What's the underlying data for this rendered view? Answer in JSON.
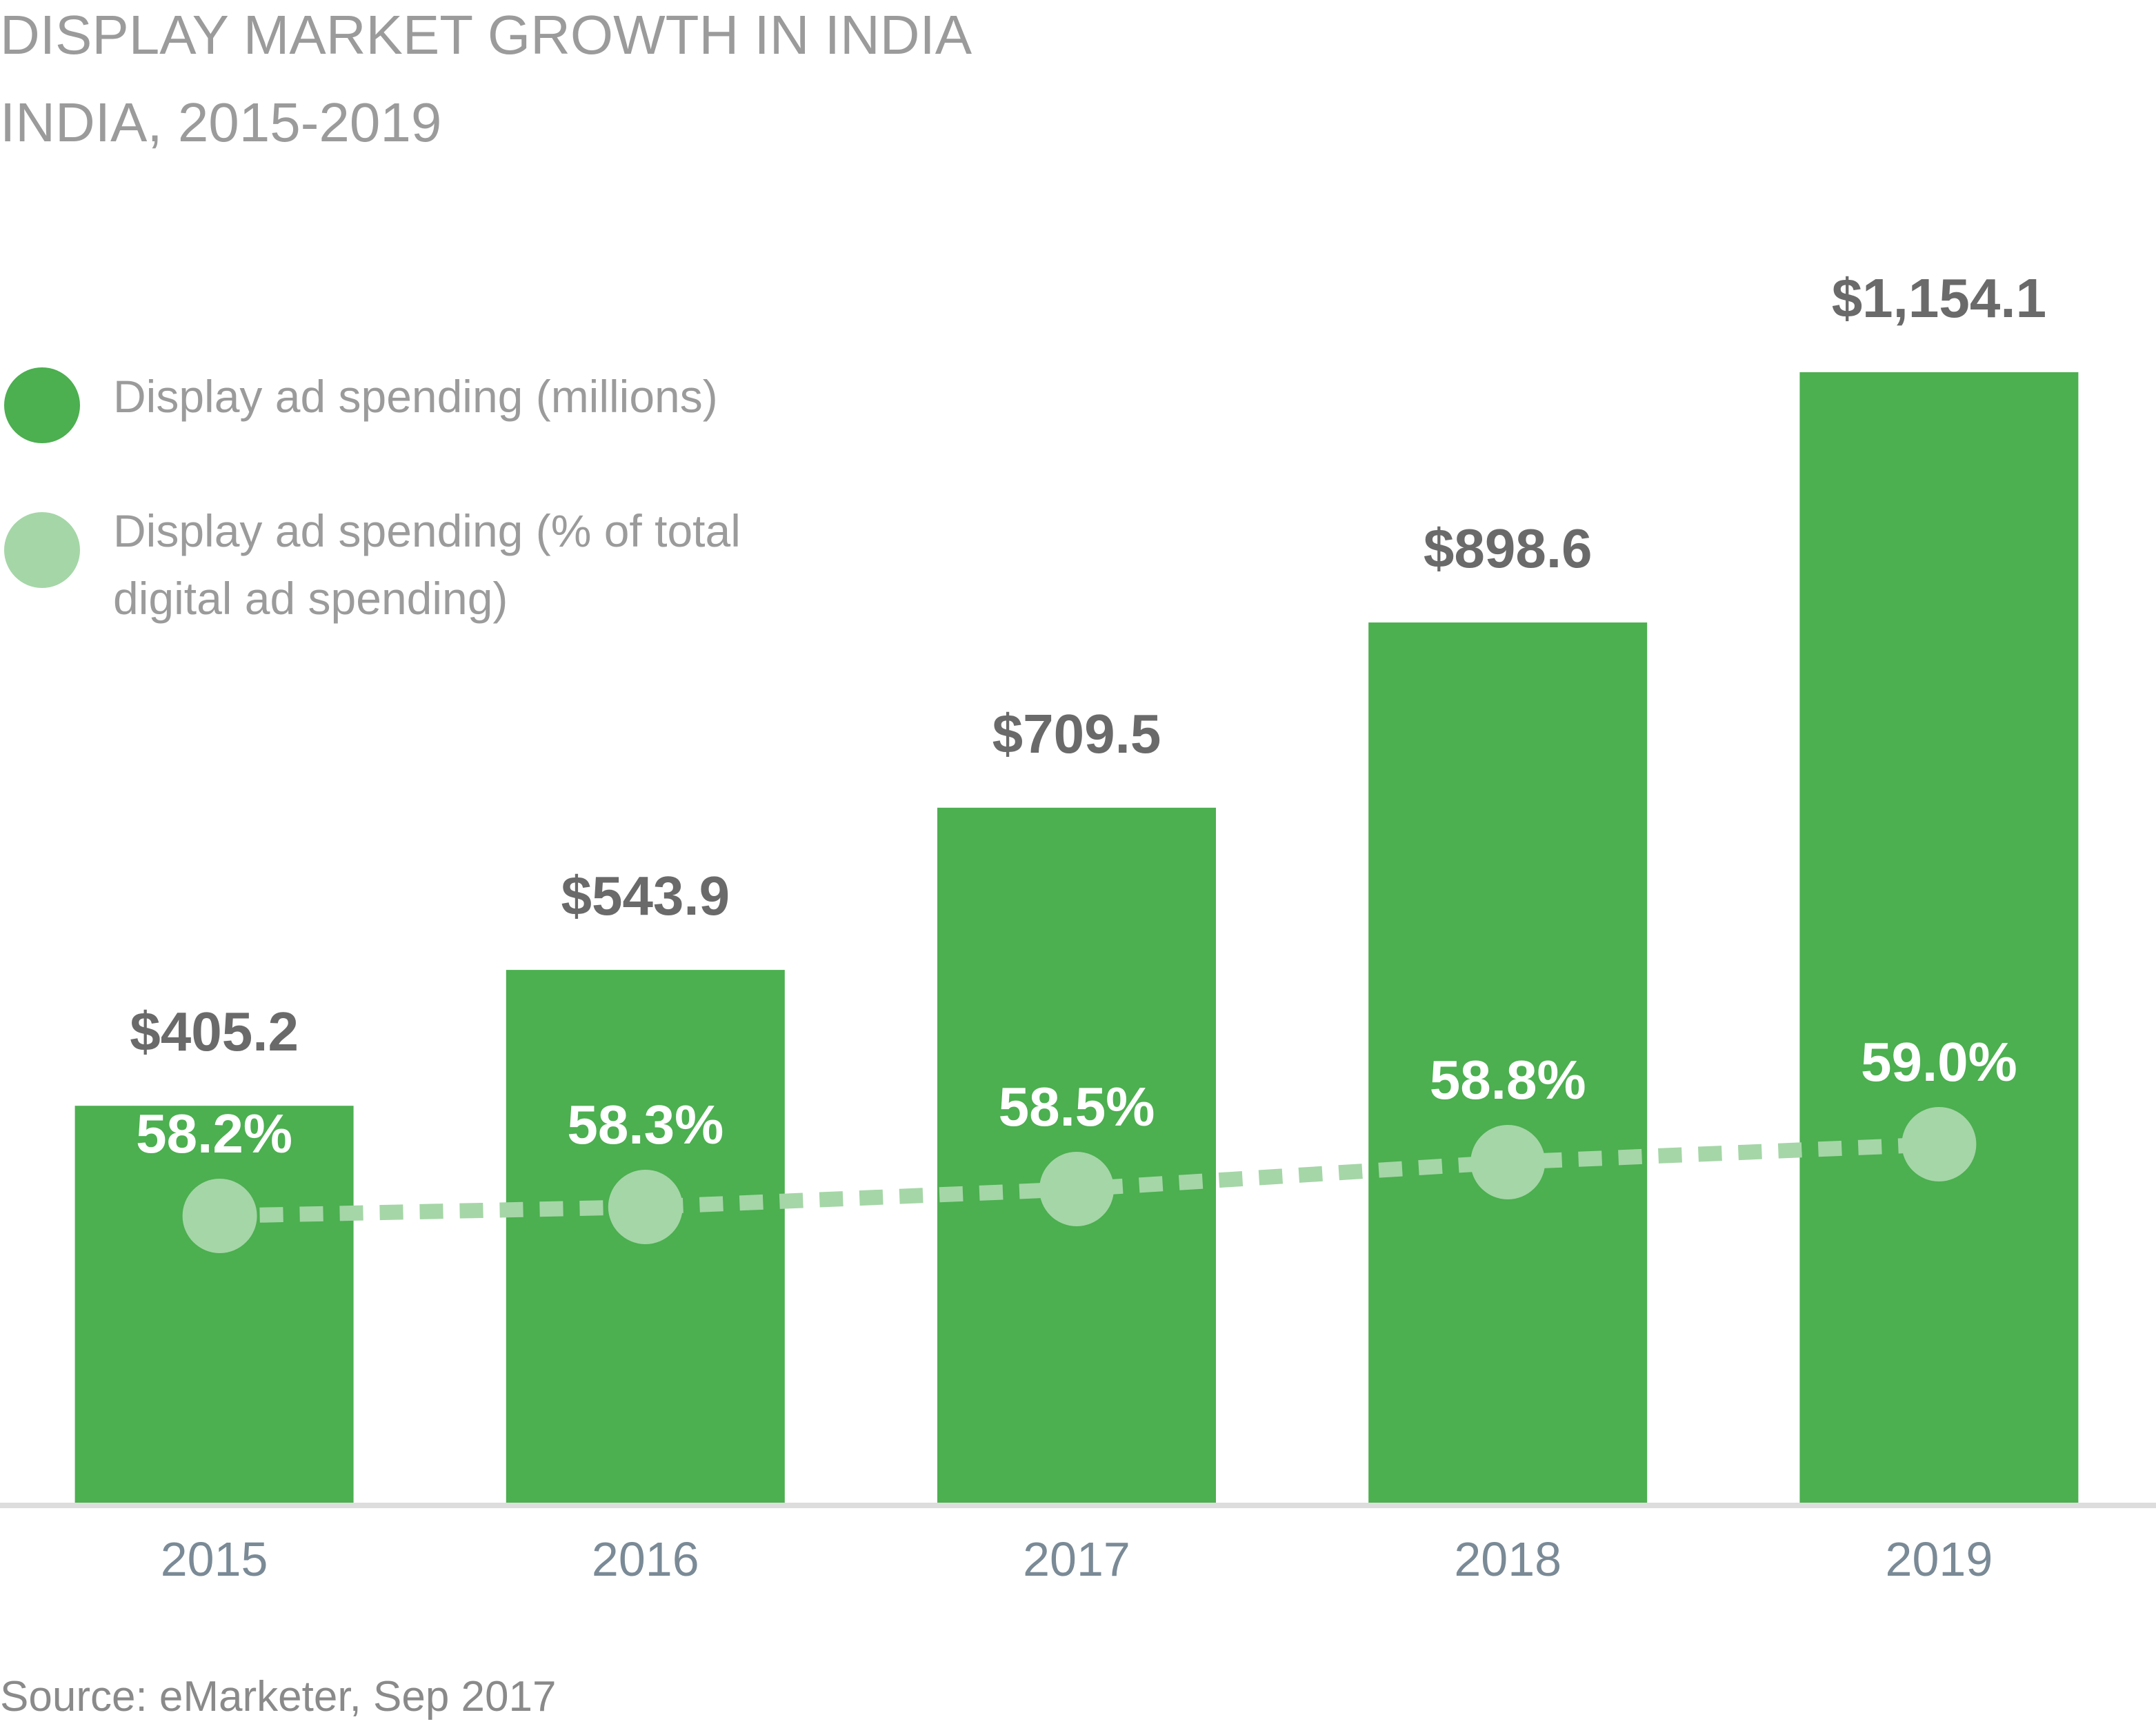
{
  "chart_data": {
    "type": "bar",
    "title": "DISPLAY MARKET GROWTH IN INDIA",
    "subtitle": "INDIA, 2015-2019",
    "categories": [
      "2015",
      "2016",
      "2017",
      "2018",
      "2019"
    ],
    "series": [
      {
        "name": "Display ad spending (millions)",
        "kind": "bar",
        "values": [
          405.2,
          543.9,
          709.5,
          898.6,
          1154.1
        ],
        "labels": [
          "$405.2",
          "$543.9",
          "$709.5",
          "$898.6",
          "$1,154.1"
        ],
        "color": "#4caf50"
      },
      {
        "name": "Display ad spending (% of total digital ad spending)",
        "legend_lines": [
          "Display ad spending (% of total",
          "digital ad spending)"
        ],
        "kind": "line",
        "values": [
          58.2,
          58.3,
          58.5,
          58.8,
          59.0
        ],
        "labels": [
          "58.2%",
          "58.3%",
          "58.5%",
          "58.8%",
          "59.0%"
        ],
        "color": "#a5d6a7"
      }
    ],
    "ylim": [
      0,
      1154.1
    ],
    "y2lim": [
      55.0,
      61.0
    ],
    "xlabel": "",
    "ylabel": "",
    "legend_position": "top-left",
    "grid": false,
    "source": "Source: eMarketer, Sep 2017"
  }
}
